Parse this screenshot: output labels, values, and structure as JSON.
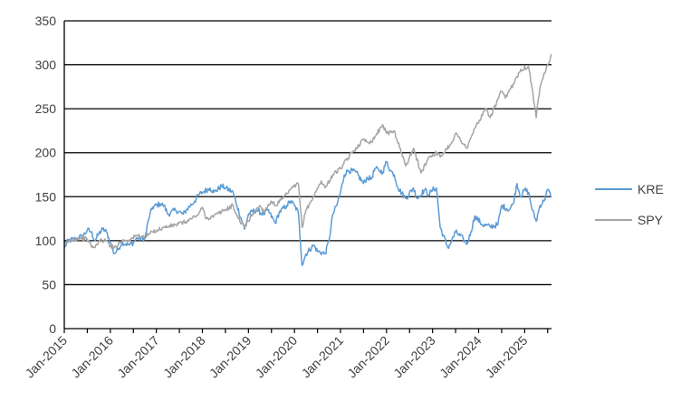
{
  "chart_data": {
    "type": "line",
    "xlabel": "",
    "ylabel": "",
    "ylim": [
      0,
      350
    ],
    "xlim": [
      "2015-01",
      "2025-08"
    ],
    "y_ticks": [
      "0",
      "50",
      "100",
      "150",
      "200",
      "250",
      "300",
      "350"
    ],
    "x_ticks": [
      "Jan-2015",
      "Jan-2016",
      "Jan-2017",
      "Jan-2018",
      "Jan-2019",
      "Jan-2020",
      "Jan-2021",
      "Jan-2022",
      "Jan-2023",
      "Jan-2024",
      "Jan-2025"
    ],
    "grid": "horizontal",
    "legend": "right",
    "series": [
      {
        "name": "KRE",
        "color": "#5b9bd5",
        "points": [
          [
            "2015-01",
            92
          ],
          [
            "2015-02",
            100
          ],
          [
            "2015-04",
            102
          ],
          [
            "2015-06",
            106
          ],
          [
            "2015-07",
            112
          ],
          [
            "2015-08",
            110
          ],
          [
            "2015-09",
            100
          ],
          [
            "2015-10",
            108
          ],
          [
            "2015-11",
            113
          ],
          [
            "2015-12",
            110
          ],
          [
            "2016-01",
            98
          ],
          [
            "2016-02",
            85
          ],
          [
            "2016-03",
            90
          ],
          [
            "2016-04",
            98
          ],
          [
            "2016-06",
            95
          ],
          [
            "2016-07",
            98
          ],
          [
            "2016-08",
            103
          ],
          [
            "2016-10",
            102
          ],
          [
            "2016-11",
            125
          ],
          [
            "2016-12",
            138
          ],
          [
            "2017-02",
            142
          ],
          [
            "2017-03",
            140
          ],
          [
            "2017-04",
            130
          ],
          [
            "2017-06",
            135
          ],
          [
            "2017-08",
            130
          ],
          [
            "2017-09",
            136
          ],
          [
            "2017-11",
            145
          ],
          [
            "2017-12",
            152
          ],
          [
            "2018-01",
            155
          ],
          [
            "2018-03",
            160
          ],
          [
            "2018-04",
            155
          ],
          [
            "2018-06",
            162
          ],
          [
            "2018-07",
            160
          ],
          [
            "2018-09",
            155
          ],
          [
            "2018-10",
            140
          ],
          [
            "2018-12",
            113
          ],
          [
            "2019-01",
            130
          ],
          [
            "2019-03",
            135
          ],
          [
            "2019-05",
            130
          ],
          [
            "2019-06",
            135
          ],
          [
            "2019-08",
            120
          ],
          [
            "2019-09",
            132
          ],
          [
            "2019-11",
            140
          ],
          [
            "2019-12",
            145
          ],
          [
            "2020-01",
            140
          ],
          [
            "2020-02",
            132
          ],
          [
            "2020-03",
            72
          ],
          [
            "2020-04",
            85
          ],
          [
            "2020-06",
            95
          ],
          [
            "2020-07",
            88
          ],
          [
            "2020-09",
            85
          ],
          [
            "2020-10",
            100
          ],
          [
            "2020-11",
            130
          ],
          [
            "2020-12",
            140
          ],
          [
            "2021-01",
            155
          ],
          [
            "2021-02",
            175
          ],
          [
            "2021-03",
            180
          ],
          [
            "2021-05",
            178
          ],
          [
            "2021-07",
            165
          ],
          [
            "2021-08",
            172
          ],
          [
            "2021-09",
            170
          ],
          [
            "2021-10",
            182
          ],
          [
            "2021-11",
            180
          ],
          [
            "2021-12",
            178
          ],
          [
            "2022-01",
            190
          ],
          [
            "2022-02",
            180
          ],
          [
            "2022-03",
            175
          ],
          [
            "2022-04",
            160
          ],
          [
            "2022-06",
            148
          ],
          [
            "2022-08",
            160
          ],
          [
            "2022-09",
            148
          ],
          [
            "2022-11",
            158
          ],
          [
            "2022-12",
            152
          ],
          [
            "2023-01",
            158
          ],
          [
            "2023-02",
            160
          ],
          [
            "2023-03",
            115
          ],
          [
            "2023-05",
            92
          ],
          [
            "2023-06",
            100
          ],
          [
            "2023-07",
            110
          ],
          [
            "2023-09",
            102
          ],
          [
            "2023-10",
            96
          ],
          [
            "2023-11",
            110
          ],
          [
            "2023-12",
            128
          ],
          [
            "2024-02",
            118
          ],
          [
            "2024-04",
            116
          ],
          [
            "2024-06",
            118
          ],
          [
            "2024-07",
            140
          ],
          [
            "2024-09",
            135
          ],
          [
            "2024-10",
            142
          ],
          [
            "2024-11",
            165
          ],
          [
            "2024-12",
            150
          ],
          [
            "2025-01",
            158
          ],
          [
            "2025-02",
            155
          ],
          [
            "2025-03",
            135
          ],
          [
            "2025-04",
            122
          ],
          [
            "2025-05",
            140
          ],
          [
            "2025-06",
            145
          ],
          [
            "2025-07",
            158
          ],
          [
            "2025-08",
            150
          ]
        ]
      },
      {
        "name": "SPY",
        "color": "#a5a5a5",
        "points": [
          [
            "2015-01",
            96
          ],
          [
            "2015-03",
            101
          ],
          [
            "2015-05",
            103
          ],
          [
            "2015-07",
            102
          ],
          [
            "2015-08",
            94
          ],
          [
            "2015-09",
            92
          ],
          [
            "2015-10",
            100
          ],
          [
            "2015-12",
            100
          ],
          [
            "2016-01",
            94
          ],
          [
            "2016-02",
            92
          ],
          [
            "2016-04",
            100
          ],
          [
            "2016-06",
            101
          ],
          [
            "2016-08",
            106
          ],
          [
            "2016-10",
            104
          ],
          [
            "2016-12",
            110
          ],
          [
            "2017-03",
            115
          ],
          [
            "2017-06",
            118
          ],
          [
            "2017-09",
            122
          ],
          [
            "2017-12",
            130
          ],
          [
            "2018-01",
            138
          ],
          [
            "2018-02",
            125
          ],
          [
            "2018-04",
            128
          ],
          [
            "2018-06",
            133
          ],
          [
            "2018-09",
            140
          ],
          [
            "2018-10",
            128
          ],
          [
            "2018-12",
            115
          ],
          [
            "2019-02",
            130
          ],
          [
            "2019-04",
            140
          ],
          [
            "2019-05",
            133
          ],
          [
            "2019-07",
            145
          ],
          [
            "2019-08",
            140
          ],
          [
            "2019-10",
            148
          ],
          [
            "2019-12",
            158
          ],
          [
            "2020-02",
            165
          ],
          [
            "2020-03",
            115
          ],
          [
            "2020-04",
            135
          ],
          [
            "2020-06",
            150
          ],
          [
            "2020-08",
            168
          ],
          [
            "2020-09",
            160
          ],
          [
            "2020-11",
            175
          ],
          [
            "2021-01",
            182
          ],
          [
            "2021-04",
            200
          ],
          [
            "2021-07",
            215
          ],
          [
            "2021-09",
            212
          ],
          [
            "2021-12",
            232
          ],
          [
            "2022-01",
            222
          ],
          [
            "2022-03",
            225
          ],
          [
            "2022-06",
            185
          ],
          [
            "2022-08",
            205
          ],
          [
            "2022-10",
            177
          ],
          [
            "2022-12",
            195
          ],
          [
            "2023-02",
            200
          ],
          [
            "2023-03",
            195
          ],
          [
            "2023-06",
            212
          ],
          [
            "2023-07",
            222
          ],
          [
            "2023-10",
            205
          ],
          [
            "2023-12",
            228
          ],
          [
            "2024-03",
            250
          ],
          [
            "2024-04",
            240
          ],
          [
            "2024-07",
            270
          ],
          [
            "2024-08",
            262
          ],
          [
            "2024-10",
            278
          ],
          [
            "2024-12",
            295
          ],
          [
            "2025-02",
            298
          ],
          [
            "2025-03",
            272
          ],
          [
            "2025-04",
            240
          ],
          [
            "2025-05",
            275
          ],
          [
            "2025-06",
            290
          ],
          [
            "2025-07",
            300
          ],
          [
            "2025-08",
            312
          ]
        ]
      }
    ]
  }
}
